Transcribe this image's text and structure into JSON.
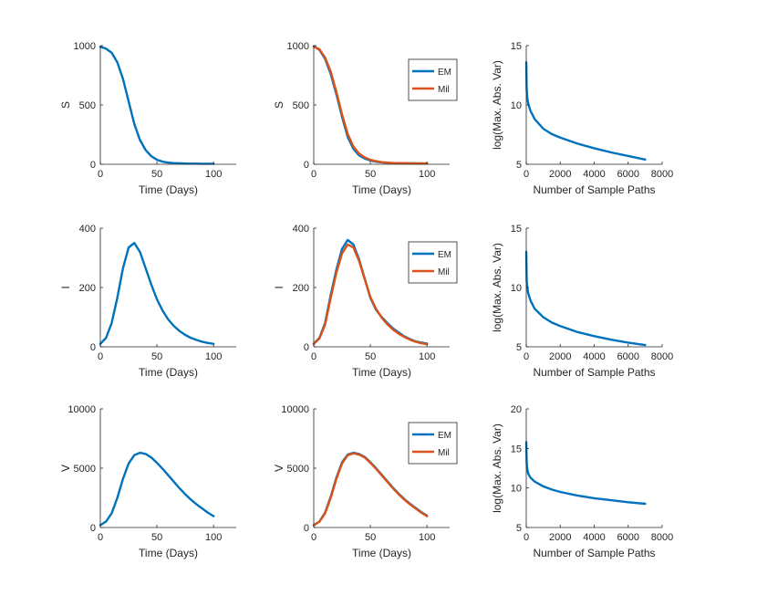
{
  "colors": {
    "em": "#0072BD",
    "mil": "#D95319",
    "axis": "#262626"
  },
  "chart_data": [
    {
      "type": "line",
      "row": 0,
      "col": 0,
      "xlabel": "Time (Days)",
      "ylabel": "S",
      "xlim": [
        0,
        120
      ],
      "ylim": [
        0,
        1000
      ],
      "xticks": [
        0,
        50,
        100
      ],
      "yticks": [
        0,
        500,
        1000
      ],
      "series": [
        {
          "name": "S",
          "color": "#0072BD",
          "x": [
            0,
            5,
            10,
            15,
            20,
            25,
            30,
            35,
            40,
            45,
            50,
            55,
            60,
            65,
            70,
            75,
            80,
            85,
            90,
            95,
            100
          ],
          "y": [
            990,
            975,
            940,
            860,
            720,
            530,
            340,
            205,
            120,
            68,
            38,
            22,
            14,
            10,
            8,
            6,
            5,
            5,
            4,
            4,
            4
          ]
        }
      ]
    },
    {
      "type": "line",
      "row": 0,
      "col": 1,
      "xlabel": "Time (Days)",
      "ylabel": "S",
      "xlim": [
        0,
        120
      ],
      "ylim": [
        0,
        1000
      ],
      "xticks": [
        0,
        50,
        100
      ],
      "yticks": [
        0,
        500,
        1000
      ],
      "legend": "top-right",
      "series": [
        {
          "name": "EM",
          "color": "#0072BD",
          "x": [
            0,
            5,
            10,
            15,
            20,
            25,
            30,
            35,
            40,
            45,
            50,
            55,
            60,
            65,
            70,
            75,
            80,
            85,
            90,
            95,
            100
          ],
          "y": [
            995,
            965,
            890,
            760,
            590,
            400,
            230,
            130,
            75,
            48,
            32,
            22,
            16,
            12,
            10,
            9,
            8,
            8,
            7,
            7,
            7
          ]
        },
        {
          "name": "Mil",
          "color": "#D95319",
          "x": [
            0,
            5,
            10,
            15,
            20,
            25,
            30,
            35,
            40,
            45,
            50,
            55,
            60,
            65,
            70,
            75,
            80,
            85,
            90,
            95,
            100
          ],
          "y": [
            990,
            970,
            900,
            780,
            610,
            420,
            255,
            150,
            90,
            58,
            38,
            26,
            18,
            14,
            11,
            10,
            9,
            8,
            8,
            7,
            7
          ]
        }
      ]
    },
    {
      "type": "line",
      "row": 0,
      "col": 2,
      "xlabel": "Number of Sample Paths",
      "ylabel": "log(Max. Abs. Var)",
      "xlim": [
        0,
        8000
      ],
      "ylim": [
        5,
        15
      ],
      "xticks": [
        0,
        2000,
        4000,
        6000,
        8000
      ],
      "yticks": [
        5,
        10,
        15
      ],
      "series": [
        {
          "name": "log max abs var",
          "color": "#0072BD",
          "x": [
            1,
            25,
            60,
            120,
            250,
            500,
            1000,
            1500,
            2000,
            3000,
            4000,
            5000,
            6000,
            7000
          ],
          "y": [
            13.6,
            11.3,
            10.6,
            10.1,
            9.5,
            8.8,
            8.0,
            7.55,
            7.25,
            6.75,
            6.35,
            6.0,
            5.7,
            5.4
          ]
        }
      ]
    },
    {
      "type": "line",
      "row": 1,
      "col": 0,
      "xlabel": "Time (Days)",
      "ylabel": "I",
      "xlim": [
        0,
        120
      ],
      "ylim": [
        0,
        400
      ],
      "xticks": [
        0,
        50,
        100
      ],
      "yticks": [
        0,
        200,
        400
      ],
      "series": [
        {
          "name": "I",
          "color": "#0072BD",
          "x": [
            0,
            5,
            10,
            15,
            20,
            25,
            30,
            35,
            40,
            45,
            50,
            55,
            60,
            65,
            70,
            75,
            80,
            85,
            90,
            95,
            100
          ],
          "y": [
            10,
            30,
            80,
            165,
            265,
            335,
            350,
            320,
            265,
            210,
            160,
            122,
            92,
            70,
            53,
            40,
            30,
            23,
            17,
            13,
            10
          ]
        }
      ]
    },
    {
      "type": "line",
      "row": 1,
      "col": 1,
      "xlabel": "Time (Days)",
      "ylabel": "I",
      "xlim": [
        0,
        120
      ],
      "ylim": [
        0,
        400
      ],
      "xticks": [
        0,
        50,
        100
      ],
      "yticks": [
        0,
        200,
        400
      ],
      "legend": "top-right",
      "series": [
        {
          "name": "EM",
          "color": "#0072BD",
          "x": [
            0,
            5,
            10,
            15,
            20,
            25,
            30,
            35,
            40,
            45,
            50,
            55,
            60,
            65,
            70,
            75,
            80,
            85,
            90,
            95,
            100
          ],
          "y": [
            10,
            30,
            80,
            175,
            260,
            330,
            360,
            345,
            295,
            230,
            165,
            125,
            100,
            80,
            62,
            48,
            35,
            26,
            18,
            14,
            11
          ]
        },
        {
          "name": "Mil",
          "color": "#D95319",
          "x": [
            0,
            5,
            10,
            15,
            20,
            25,
            30,
            35,
            40,
            45,
            50,
            55,
            60,
            65,
            70,
            75,
            80,
            85,
            90,
            95,
            100
          ],
          "y": [
            10,
            28,
            75,
            165,
            250,
            315,
            345,
            335,
            290,
            228,
            168,
            128,
            98,
            76,
            58,
            44,
            33,
            24,
            17,
            12,
            9
          ]
        }
      ]
    },
    {
      "type": "line",
      "row": 1,
      "col": 2,
      "xlabel": "Number of Sample Paths",
      "ylabel": "log(Max. Abs. Var)",
      "xlim": [
        0,
        8000
      ],
      "ylim": [
        5,
        15
      ],
      "xticks": [
        0,
        2000,
        4000,
        6000,
        8000
      ],
      "yticks": [
        5,
        10,
        15
      ],
      "series": [
        {
          "name": "log max abs var",
          "color": "#0072BD",
          "x": [
            1,
            25,
            60,
            120,
            250,
            500,
            1000,
            1500,
            2000,
            3000,
            4000,
            5000,
            6000,
            7000
          ],
          "y": [
            13.0,
            10.6,
            10.0,
            9.5,
            8.9,
            8.2,
            7.5,
            7.05,
            6.75,
            6.25,
            5.9,
            5.6,
            5.35,
            5.15
          ]
        }
      ]
    },
    {
      "type": "line",
      "row": 2,
      "col": 0,
      "xlabel": "Time (Days)",
      "ylabel": "V",
      "xlim": [
        0,
        120
      ],
      "ylim": [
        0,
        10000
      ],
      "xticks": [
        0,
        50,
        100
      ],
      "yticks": [
        0,
        5000,
        10000
      ],
      "series": [
        {
          "name": "V",
          "color": "#0072BD",
          "x": [
            0,
            5,
            10,
            15,
            20,
            25,
            30,
            35,
            40,
            45,
            50,
            55,
            60,
            65,
            70,
            75,
            80,
            85,
            90,
            95,
            100
          ],
          "y": [
            200,
            500,
            1200,
            2500,
            4100,
            5400,
            6100,
            6300,
            6200,
            5900,
            5450,
            4950,
            4400,
            3850,
            3300,
            2800,
            2350,
            1950,
            1600,
            1250,
            950
          ]
        }
      ]
    },
    {
      "type": "line",
      "row": 2,
      "col": 1,
      "xlabel": "Time (Days)",
      "ylabel": "V",
      "xlim": [
        0,
        120
      ],
      "ylim": [
        0,
        10000
      ],
      "xticks": [
        0,
        50,
        100
      ],
      "yticks": [
        0,
        5000,
        10000
      ],
      "legend": "top-right",
      "series": [
        {
          "name": "EM",
          "color": "#0072BD",
          "x": [
            0,
            5,
            10,
            15,
            20,
            25,
            30,
            35,
            40,
            45,
            50,
            55,
            60,
            65,
            70,
            75,
            80,
            85,
            90,
            95,
            100
          ],
          "y": [
            200,
            500,
            1250,
            2600,
            4200,
            5500,
            6150,
            6300,
            6200,
            5950,
            5500,
            5000,
            4450,
            3900,
            3350,
            2850,
            2400,
            2000,
            1650,
            1300,
            1000
          ]
        },
        {
          "name": "Mil",
          "color": "#D95319",
          "x": [
            0,
            5,
            10,
            15,
            20,
            25,
            30,
            35,
            40,
            45,
            50,
            55,
            60,
            65,
            70,
            75,
            80,
            85,
            90,
            95,
            100
          ],
          "y": [
            200,
            480,
            1200,
            2500,
            4100,
            5400,
            6100,
            6250,
            6150,
            5900,
            5450,
            4950,
            4400,
            3850,
            3300,
            2800,
            2350,
            1950,
            1600,
            1250,
            950
          ]
        }
      ]
    },
    {
      "type": "line",
      "row": 2,
      "col": 2,
      "xlabel": "Number of Sample Paths",
      "ylabel": "log(Max. Abs. Var)",
      "xlim": [
        0,
        8000
      ],
      "ylim": [
        5,
        20
      ],
      "xticks": [
        0,
        2000,
        4000,
        6000,
        8000
      ],
      "yticks": [
        5,
        10,
        15,
        20
      ],
      "series": [
        {
          "name": "log max abs var",
          "color": "#0072BD",
          "x": [
            1,
            25,
            60,
            120,
            250,
            500,
            1000,
            1500,
            2000,
            3000,
            4000,
            5000,
            6000,
            7000
          ],
          "y": [
            15.8,
            13.2,
            12.4,
            11.8,
            11.3,
            10.8,
            10.2,
            9.8,
            9.5,
            9.05,
            8.7,
            8.45,
            8.2,
            8.0
          ]
        }
      ]
    }
  ]
}
